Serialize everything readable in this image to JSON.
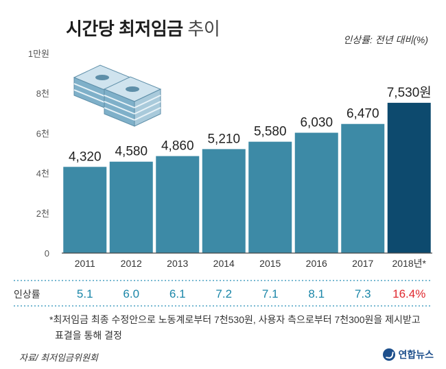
{
  "title_main": "시간당 최저임금",
  "title_light": "추이",
  "rate_note": "인상률: 전년 대비(%)",
  "rate_label": "인상률",
  "footnote": "*최저임금 최종 수정안으로 노동계로부터 7천530원, 사용자 측으로부터 7천300원을 제시받고 표결을 통해 결정",
  "source": "자료/ 최저임금위원회",
  "logo": "연합뉴스",
  "colors": {
    "bar": "#3d8aa6",
    "bar_highlight": "#0d4a6e",
    "rate": "#1a86a8",
    "rate_highlight": "#e0282e",
    "dotted": "#4aa0c2"
  },
  "chart_data": {
    "type": "bar",
    "title": "시간당 최저임금 추이",
    "categories": [
      "2011",
      "2012",
      "2013",
      "2014",
      "2015",
      "2016",
      "2017",
      "2018년*"
    ],
    "values": [
      4320,
      4580,
      4860,
      5210,
      5580,
      6030,
      6470,
      7530
    ],
    "value_labels": [
      "4,320",
      "4,580",
      "4,860",
      "5,210",
      "5,580",
      "6,030",
      "6,470",
      "7,530원"
    ],
    "rates": [
      "5.1",
      "6.0",
      "6.1",
      "7.2",
      "7.1",
      "8.1",
      "7.3",
      "16.4%"
    ],
    "highlight_index": 7,
    "yticks": [
      0,
      2000,
      4000,
      6000,
      8000,
      10000
    ],
    "ytick_labels": [
      "0",
      "2천",
      "4천",
      "6천",
      "8천",
      "1만원"
    ],
    "ylim": [
      0,
      10000
    ],
    "grid": false,
    "legend": "none"
  }
}
